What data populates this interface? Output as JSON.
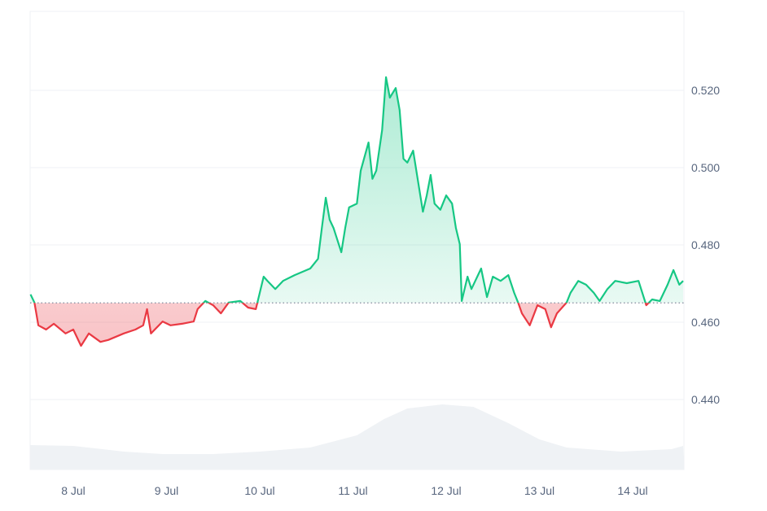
{
  "chart_data": {
    "type": "line",
    "title": "",
    "xlabel": "",
    "ylabel": "",
    "ylim": [
      0.4215,
      0.5405
    ],
    "yticks": [
      "0.440",
      "0.460",
      "0.480",
      "0.500",
      "0.520"
    ],
    "xticks": [
      "8 Jul",
      "9 Jul",
      "10 Jul",
      "11 Jul",
      "12 Jul",
      "13 Jul",
      "14 Jul"
    ],
    "baseline": 0.465,
    "grid": true,
    "legend": "none",
    "colors": {
      "up": "#16c784",
      "down": "#ea3943",
      "volume": "#eff2f5",
      "grid": "#eff2f5",
      "baseline": "#808a9d"
    },
    "series": [
      {
        "values": [
          [
            "7 Jul 13:00",
            0.4672
          ],
          [
            "7 Jul 14:00",
            0.4651
          ],
          [
            "7 Jul 15:00",
            0.4592
          ],
          [
            "7 Jul 17:00",
            0.4581
          ],
          [
            "7 Jul 19:00",
            0.4596
          ],
          [
            "7 Jul 22:00",
            0.4571
          ],
          [
            "8 Jul 00:00",
            0.4581
          ],
          [
            "8 Jul 02:00",
            0.4539
          ],
          [
            "8 Jul 04:00",
            0.4571
          ],
          [
            "8 Jul 07:00",
            0.4549
          ],
          [
            "8 Jul 09:00",
            0.4554
          ],
          [
            "8 Jul 13:00",
            0.4571
          ],
          [
            "8 Jul 16:00",
            0.4581
          ],
          [
            "8 Jul 18:00",
            0.4592
          ],
          [
            "8 Jul 19:00",
            0.4634
          ],
          [
            "8 Jul 20:00",
            0.4571
          ],
          [
            "8 Jul 23:00",
            0.4602
          ],
          [
            "9 Jul 01:00",
            0.4592
          ],
          [
            "9 Jul 04:00",
            0.4596
          ],
          [
            "9 Jul 07:00",
            0.4602
          ],
          [
            "9 Jul 08:00",
            0.4634
          ],
          [
            "9 Jul 10:00",
            0.4655
          ],
          [
            "9 Jul 12:00",
            0.4644
          ],
          [
            "9 Jul 14:00",
            0.4623
          ],
          [
            "9 Jul 16:00",
            0.4651
          ],
          [
            "9 Jul 19:00",
            0.4655
          ],
          [
            "9 Jul 21:00",
            0.4638
          ],
          [
            "9 Jul 23:00",
            0.4634
          ],
          [
            "10 Jul 01:00",
            0.4718
          ],
          [
            "10 Jul 02:00",
            0.4707
          ],
          [
            "10 Jul 04:00",
            0.4686
          ],
          [
            "10 Jul 06:00",
            0.4707
          ],
          [
            "10 Jul 09:00",
            0.4722
          ],
          [
            "10 Jul 13:00",
            0.4739
          ],
          [
            "10 Jul 15:00",
            0.4764
          ],
          [
            "10 Jul 16:00",
            0.4844
          ],
          [
            "10 Jul 17:00",
            0.4922
          ],
          [
            "10 Jul 18:00",
            0.4865
          ],
          [
            "10 Jul 19:00",
            0.4844
          ],
          [
            "10 Jul 21:00",
            0.4781
          ],
          [
            "10 Jul 22:00",
            0.4844
          ],
          [
            "10 Jul 23:00",
            0.4897
          ],
          [
            "11 Jul 01:00",
            0.4907
          ],
          [
            "11 Jul 02:00",
            0.4992
          ],
          [
            "11 Jul 04:00",
            0.5065
          ],
          [
            "11 Jul 05:00",
            0.4971
          ],
          [
            "11 Jul 06:00",
            0.4992
          ],
          [
            "11 Jul 07:30",
            0.5097
          ],
          [
            "11 Jul 08:30",
            0.5234
          ],
          [
            "11 Jul 09:30",
            0.5181
          ],
          [
            "11 Jul 11:00",
            0.5206
          ],
          [
            "11 Jul 12:00",
            0.5149
          ],
          [
            "11 Jul 13:00",
            0.5023
          ],
          [
            "11 Jul 14:00",
            0.5013
          ],
          [
            "11 Jul 15:30",
            0.5044
          ],
          [
            "11 Jul 17:00",
            0.4949
          ],
          [
            "11 Jul 18:00",
            0.4886
          ],
          [
            "11 Jul 19:00",
            0.4928
          ],
          [
            "11 Jul 20:00",
            0.4981
          ],
          [
            "11 Jul 21:00",
            0.4907
          ],
          [
            "11 Jul 22:30",
            0.4891
          ],
          [
            "12 Jul 00:00",
            0.4928
          ],
          [
            "12 Jul 01:30",
            0.4907
          ],
          [
            "12 Jul 02:30",
            0.4844
          ],
          [
            "12 Jul 03:30",
            0.4802
          ],
          [
            "12 Jul 04:00",
            0.4655
          ],
          [
            "12 Jul 05:30",
            0.4718
          ],
          [
            "12 Jul 06:30",
            0.4686
          ],
          [
            "12 Jul 09:00",
            0.4739
          ],
          [
            "12 Jul 10:30",
            0.4665
          ],
          [
            "12 Jul 12:00",
            0.4718
          ],
          [
            "12 Jul 14:00",
            0.4707
          ],
          [
            "12 Jul 16:00",
            0.4722
          ],
          [
            "12 Jul 17:30",
            0.4676
          ],
          [
            "12 Jul 18:30",
            0.4651
          ],
          [
            "12 Jul 19:30",
            0.4623
          ],
          [
            "12 Jul 21:30",
            0.4592
          ],
          [
            "12 Jul 23:30",
            0.4644
          ],
          [
            "13 Jul 01:30",
            0.4634
          ],
          [
            "13 Jul 03:00",
            0.4587
          ],
          [
            "13 Jul 04:30",
            0.4623
          ],
          [
            "13 Jul 07:00",
            0.4651
          ],
          [
            "13 Jul 08:00",
            0.4676
          ],
          [
            "13 Jul 10:00",
            0.4707
          ],
          [
            "13 Jul 12:00",
            0.4697
          ],
          [
            "13 Jul 14:00",
            0.4676
          ],
          [
            "13 Jul 15:30",
            0.4655
          ],
          [
            "13 Jul 17:30",
            0.4686
          ],
          [
            "13 Jul 19:30",
            0.4707
          ],
          [
            "13 Jul 22:30",
            0.4701
          ],
          [
            "14 Jul 01:30",
            0.4707
          ],
          [
            "14 Jul 03:30",
            0.4644
          ],
          [
            "14 Jul 05:00",
            0.4659
          ],
          [
            "14 Jul 07:00",
            0.4655
          ],
          [
            "14 Jul 09:00",
            0.4697
          ],
          [
            "14 Jul 10:30",
            0.4735
          ],
          [
            "14 Jul 12:00",
            0.4697
          ],
          [
            "14 Jul 13:00",
            0.4707
          ]
        ]
      }
    ],
    "volume_relative": [
      [
        "7 Jul 13:00",
        30
      ],
      [
        "8 Jul 00:00",
        29
      ],
      [
        "8 Jul 13:00",
        22
      ],
      [
        "8 Jul 23:00",
        19
      ],
      [
        "9 Jul 12:00",
        19
      ],
      [
        "10 Jul 00:00",
        22
      ],
      [
        "10 Jul 13:00",
        27
      ],
      [
        "10 Jul 17:00",
        32
      ],
      [
        "11 Jul 01:00",
        42
      ],
      [
        "11 Jul 08:00",
        62
      ],
      [
        "11 Jul 14:00",
        75
      ],
      [
        "11 Jul 23:00",
        80
      ],
      [
        "12 Jul 07:00",
        77
      ],
      [
        "12 Jul 16:00",
        57
      ],
      [
        "13 Jul 00:00",
        37
      ],
      [
        "13 Jul 07:00",
        27
      ],
      [
        "13 Jul 21:00",
        22
      ],
      [
        "14 Jul 10:00",
        25
      ],
      [
        "14 Jul 13:00",
        29
      ]
    ]
  }
}
